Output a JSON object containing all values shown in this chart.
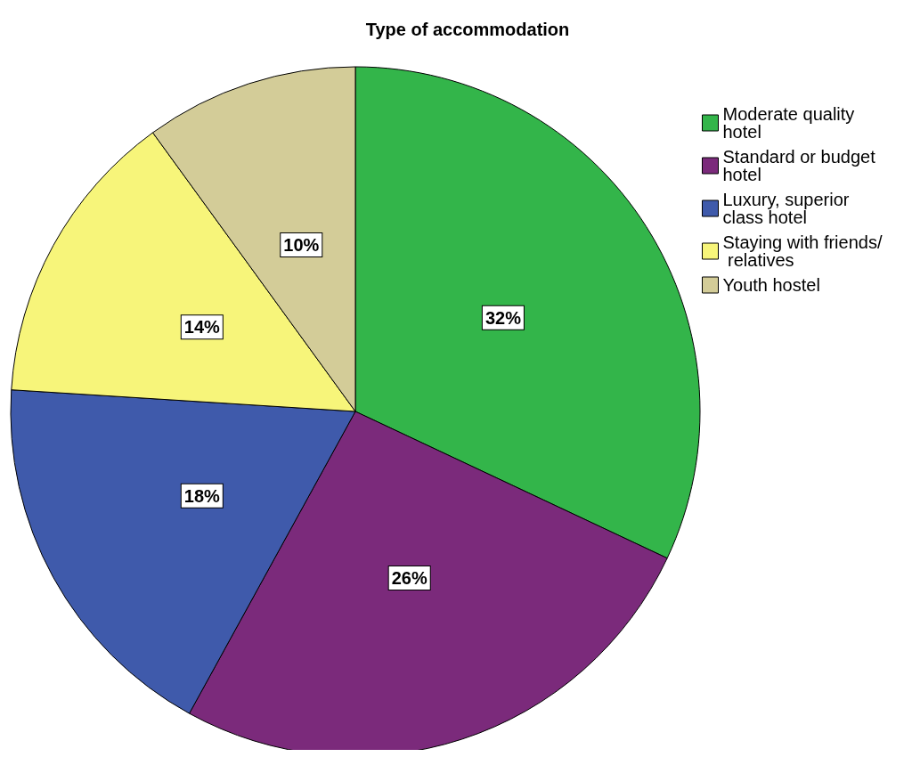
{
  "chart_data": {
    "type": "pie",
    "title": "Type of accommodation",
    "categories": [
      "Moderate quality hotel",
      "Standard or budget hotel",
      "Luxury, superior class hotel",
      "Staying with friends/ relatives",
      "Youth hostel"
    ],
    "values": [
      32,
      26,
      18,
      14,
      10
    ],
    "colors": [
      "#33b54a",
      "#7b2a7b",
      "#3f5aab",
      "#f7f57a",
      "#d3cc98"
    ],
    "value_labels": [
      "32%",
      "26%",
      "18%",
      "14%",
      "10%"
    ],
    "legend": "top right"
  }
}
